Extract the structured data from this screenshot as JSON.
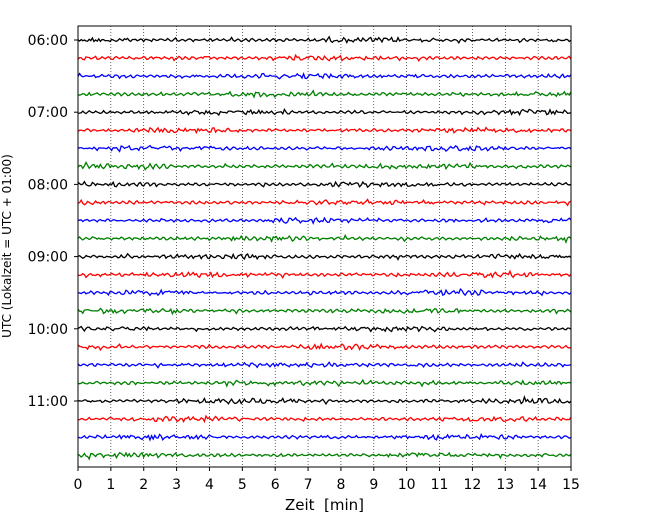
{
  "chart_data": {
    "type": "line",
    "title": "",
    "xlabel": "Zeit  [min]",
    "ylabel": "UTC (Lokalzeit = UTC + 01:00)",
    "xlim": [
      0,
      15
    ],
    "x_ticks": [
      "0",
      "1",
      "2",
      "3",
      "4",
      "5",
      "6",
      "7",
      "8",
      "9",
      "10",
      "11",
      "12",
      "13",
      "14",
      "15"
    ],
    "y_ticks": [
      "06:00",
      "07:00",
      "08:00",
      "09:00",
      "10:00",
      "11:00"
    ],
    "grid": "vertical dotted at each minute",
    "trace_interval_min": 15,
    "trace_count": 24,
    "first_trace": "06:00",
    "trace_colors": [
      "#000000",
      "#ff0000",
      "#0000ff",
      "#008000"
    ],
    "series": [
      {
        "start": "06:00",
        "color": "#000000"
      },
      {
        "start": "06:15",
        "color": "#ff0000"
      },
      {
        "start": "06:30",
        "color": "#0000ff"
      },
      {
        "start": "06:45",
        "color": "#008000"
      },
      {
        "start": "07:00",
        "color": "#000000"
      },
      {
        "start": "07:15",
        "color": "#ff0000"
      },
      {
        "start": "07:30",
        "color": "#0000ff"
      },
      {
        "start": "07:45",
        "color": "#008000"
      },
      {
        "start": "08:00",
        "color": "#000000"
      },
      {
        "start": "08:15",
        "color": "#ff0000"
      },
      {
        "start": "08:30",
        "color": "#0000ff"
      },
      {
        "start": "08:45",
        "color": "#008000"
      },
      {
        "start": "09:00",
        "color": "#000000"
      },
      {
        "start": "09:15",
        "color": "#ff0000"
      },
      {
        "start": "09:30",
        "color": "#0000ff"
      },
      {
        "start": "09:45",
        "color": "#008000"
      },
      {
        "start": "10:00",
        "color": "#000000"
      },
      {
        "start": "10:15",
        "color": "#ff0000"
      },
      {
        "start": "10:30",
        "color": "#0000ff"
      },
      {
        "start": "10:45",
        "color": "#008000"
      },
      {
        "start": "11:00",
        "color": "#000000"
      },
      {
        "start": "11:15",
        "color": "#ff0000"
      },
      {
        "start": "11:30",
        "color": "#0000ff"
      },
      {
        "start": "11:45",
        "color": "#008000"
      }
    ]
  }
}
